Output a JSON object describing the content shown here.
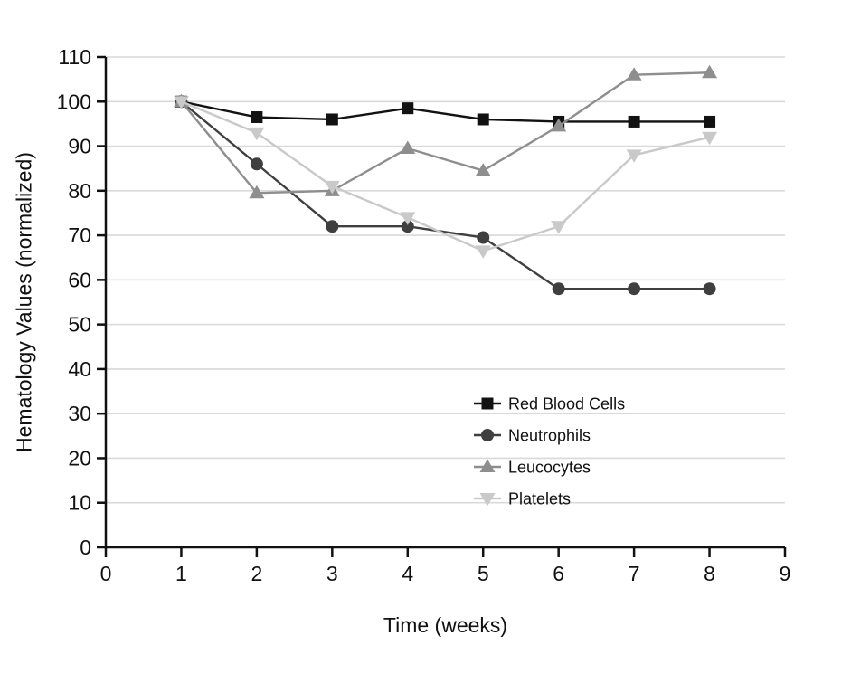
{
  "chart_data": {
    "type": "line",
    "title": "",
    "xlabel": "Time (weeks)",
    "ylabel": "Hematology Values (normalized)",
    "xlim": [
      0,
      9
    ],
    "ylim": [
      0,
      110
    ],
    "xticks": [
      0,
      1,
      2,
      3,
      4,
      5,
      6,
      7,
      8,
      9
    ],
    "yticks": [
      0,
      10,
      20,
      30,
      40,
      50,
      60,
      70,
      80,
      90,
      100,
      110
    ],
    "grid": "horizontal-only",
    "legend_position": "inside-center-right",
    "x": [
      1,
      2,
      3,
      4,
      5,
      6,
      7,
      8
    ],
    "series": [
      {
        "name": "Red Blood Cells",
        "marker": "square",
        "color": "#121212",
        "values": [
          100,
          96.5,
          96,
          98.5,
          96,
          95.5,
          95.5,
          95.5
        ]
      },
      {
        "name": "Neutrophils",
        "marker": "circle",
        "color": "#3f3f3f",
        "values": [
          100,
          86,
          72,
          72,
          69.5,
          58,
          58,
          58
        ]
      },
      {
        "name": "Leucocytes",
        "marker": "triangle-up",
        "color": "#8e8e8e",
        "values": [
          100,
          79.5,
          80,
          89.5,
          84.5,
          94.5,
          106,
          106.5
        ]
      },
      {
        "name": "Platelets",
        "marker": "triangle-down",
        "color": "#c9c9c9",
        "values": [
          100,
          93,
          81,
          74,
          66.5,
          72,
          88,
          92
        ]
      }
    ],
    "colors": {
      "grid": "#d9d9d9",
      "axis": "#111111",
      "text": "#111111",
      "background": "#ffffff"
    }
  }
}
